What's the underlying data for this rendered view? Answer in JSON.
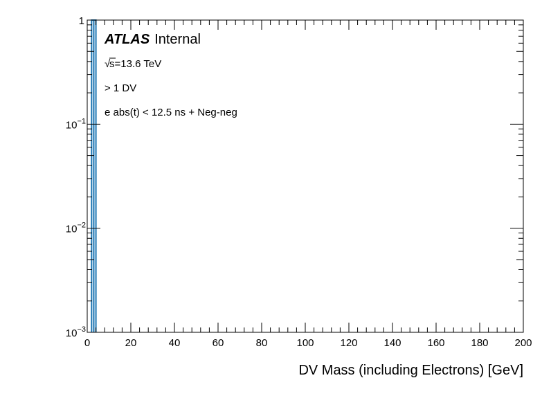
{
  "chart_data": {
    "type": "bar",
    "title": "",
    "xlabel": "DV Mass (including Electrons) [GeV]",
    "ylabel": "",
    "xlim": [
      0,
      200
    ],
    "ylim": [
      0.001,
      1
    ],
    "ylog": true,
    "grid": false,
    "x_ticks": [
      "0",
      "20",
      "40",
      "60",
      "80",
      "100",
      "120",
      "140",
      "160",
      "180",
      "200"
    ],
    "y_ticks": [
      {
        "value": 1,
        "base": "1",
        "exp": ""
      },
      {
        "value": 0.1,
        "base": "10",
        "exp": "−1"
      },
      {
        "value": 0.01,
        "base": "10",
        "exp": "−2"
      },
      {
        "value": 0.001,
        "base": "10",
        "exp": "−3"
      }
    ],
    "bins": [
      {
        "x_low": 2,
        "x_high": 3,
        "value": 1
      },
      {
        "x_low": 3,
        "x_high": 4,
        "value": 1
      }
    ],
    "colors": {
      "histogram": "#1f77b4",
      "axis": "#000000"
    }
  },
  "labels": {
    "atlas": "ATLAS",
    "internal": "Internal",
    "energy_sqrt": "√",
    "energy_s": "s",
    "energy_value": "=13.6 TeV",
    "selection1": "> 1 DV",
    "selection2": "e abs(t) < 12.5 ns + Neg-neg"
  }
}
